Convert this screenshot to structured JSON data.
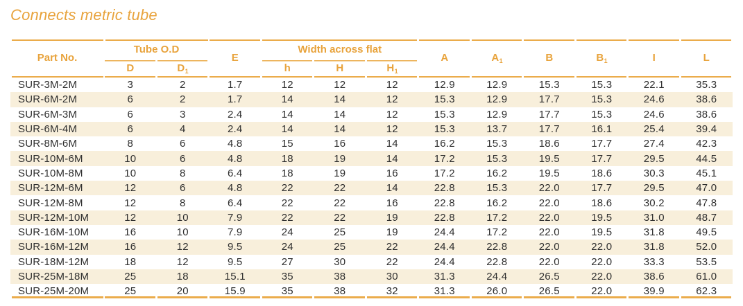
{
  "title": "Connects metric tube",
  "colors": {
    "accent": "#E8A33C",
    "rule_line": "#EBAC4B",
    "row_stripe": "#F8EFDB",
    "body_text": "#2F2F2F"
  },
  "table": {
    "header": {
      "part_no": "Part No.",
      "tube_od": "Tube O.D",
      "e": "E",
      "width_across_flat": "Width across flat"
    },
    "subheaders": [
      {
        "label": "D",
        "sub": ""
      },
      {
        "label": "D",
        "sub": "1"
      },
      {
        "label": "h",
        "sub": ""
      },
      {
        "label": "H",
        "sub": ""
      },
      {
        "label": "H",
        "sub": "1"
      }
    ],
    "right_headers": [
      {
        "label": "A",
        "sub": ""
      },
      {
        "label": "A",
        "sub": "1"
      },
      {
        "label": "B",
        "sub": ""
      },
      {
        "label": "B",
        "sub": "1"
      },
      {
        "label": "I",
        "sub": ""
      },
      {
        "label": "L",
        "sub": ""
      }
    ],
    "columns": [
      "part_no",
      "d",
      "d1",
      "e",
      "h",
      "h_cap",
      "h1",
      "a",
      "a1",
      "b",
      "b1",
      "i",
      "l"
    ],
    "rows": [
      [
        "SUR-3M-2M",
        "3",
        "2",
        "1.7",
        "12",
        "12",
        "12",
        "12.9",
        "12.9",
        "15.3",
        "15.3",
        "22.1",
        "35.3"
      ],
      [
        "SUR-6M-2M",
        "6",
        "2",
        "1.7",
        "14",
        "14",
        "12",
        "15.3",
        "12.9",
        "17.7",
        "15.3",
        "24.6",
        "38.6"
      ],
      [
        "SUR-6M-3M",
        "6",
        "3",
        "2.4",
        "14",
        "14",
        "12",
        "15.3",
        "12.9",
        "17.7",
        "15.3",
        "24.6",
        "38.6"
      ],
      [
        "SUR-6M-4M",
        "6",
        "4",
        "2.4",
        "14",
        "14",
        "12",
        "15.3",
        "13.7",
        "17.7",
        "16.1",
        "25.4",
        "39.4"
      ],
      [
        "SUR-8M-6M",
        "8",
        "6",
        "4.8",
        "15",
        "16",
        "14",
        "16.2",
        "15.3",
        "18.6",
        "17.7",
        "27.4",
        "42.3"
      ],
      [
        "SUR-10M-6M",
        "10",
        "6",
        "4.8",
        "18",
        "19",
        "14",
        "17.2",
        "15.3",
        "19.5",
        "17.7",
        "29.5",
        "44.5"
      ],
      [
        "SUR-10M-8M",
        "10",
        "8",
        "6.4",
        "18",
        "19",
        "16",
        "17.2",
        "16.2",
        "19.5",
        "18.6",
        "30.3",
        "45.1"
      ],
      [
        "SUR-12M-6M",
        "12",
        "6",
        "4.8",
        "22",
        "22",
        "14",
        "22.8",
        "15.3",
        "22.0",
        "17.7",
        "29.5",
        "47.0"
      ],
      [
        "SUR-12M-8M",
        "12",
        "8",
        "6.4",
        "22",
        "22",
        "16",
        "22.8",
        "16.2",
        "22.0",
        "18.6",
        "30.2",
        "47.8"
      ],
      [
        "SUR-12M-10M",
        "12",
        "10",
        "7.9",
        "22",
        "22",
        "19",
        "22.8",
        "17.2",
        "22.0",
        "19.5",
        "31.0",
        "48.7"
      ],
      [
        "SUR-16M-10M",
        "16",
        "10",
        "7.9",
        "24",
        "25",
        "19",
        "24.4",
        "17.2",
        "22.0",
        "19.5",
        "31.8",
        "49.5"
      ],
      [
        "SUR-16M-12M",
        "16",
        "12",
        "9.5",
        "24",
        "25",
        "22",
        "24.4",
        "22.8",
        "22.0",
        "22.0",
        "31.8",
        "52.0"
      ],
      [
        "SUR-18M-12M",
        "18",
        "12",
        "9.5",
        "27",
        "30",
        "22",
        "24.4",
        "22.8",
        "22.0",
        "22.0",
        "33.3",
        "53.5"
      ],
      [
        "SUR-25M-18M",
        "25",
        "18",
        "15.1",
        "35",
        "38",
        "30",
        "31.3",
        "24.4",
        "26.5",
        "22.0",
        "38.6",
        "61.0"
      ],
      [
        "SUR-25M-20M",
        "25",
        "20",
        "15.9",
        "35",
        "38",
        "32",
        "31.3",
        "26.0",
        "26.5",
        "22.0",
        "39.9",
        "62.3"
      ]
    ]
  }
}
